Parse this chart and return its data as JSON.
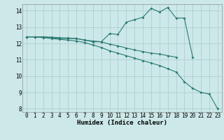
{
  "xlabel": "Humidex (Indice chaleur)",
  "xlim": [
    -0.5,
    23.5
  ],
  "ylim": [
    7.8,
    14.4
  ],
  "xticks": [
    0,
    1,
    2,
    3,
    4,
    5,
    6,
    7,
    8,
    9,
    10,
    11,
    12,
    13,
    14,
    15,
    16,
    17,
    18,
    19,
    20,
    21,
    22,
    23
  ],
  "yticks": [
    8,
    9,
    10,
    11,
    12,
    13,
    14
  ],
  "bg_color": "#cce8e8",
  "grid_color": "#b0d0d0",
  "line_color": "#2a7a72",
  "line1_x": [
    0,
    1,
    2,
    3,
    4,
    5,
    6,
    7,
    8,
    9,
    10,
    11,
    12,
    13,
    14,
    15,
    16,
    17,
    18,
    19,
    20
  ],
  "line1_y": [
    12.4,
    12.4,
    12.4,
    12.35,
    12.3,
    12.3,
    12.3,
    12.2,
    12.1,
    12.1,
    12.6,
    12.55,
    13.3,
    13.45,
    13.6,
    14.15,
    13.92,
    14.2,
    13.55,
    13.55,
    11.15
  ],
  "line2_x": [
    0,
    1,
    2,
    3,
    4,
    5,
    6,
    7,
    8,
    9,
    10,
    11,
    12,
    13,
    14,
    15,
    16,
    17,
    18,
    19,
    20,
    21,
    22,
    23
  ],
  "line2_y": [
    12.4,
    12.4,
    12.35,
    12.3,
    12.25,
    12.2,
    12.15,
    12.05,
    11.9,
    11.75,
    11.55,
    11.4,
    11.25,
    11.1,
    10.95,
    10.8,
    10.65,
    10.45,
    10.25,
    9.65,
    9.25,
    9.0,
    8.9,
    8.0
  ],
  "line3_x": [
    0,
    1,
    2,
    3,
    4,
    5,
    6,
    7,
    8,
    9,
    10,
    11,
    12,
    13,
    14,
    15,
    16,
    17,
    18
  ],
  "line3_y": [
    12.4,
    12.4,
    12.4,
    12.38,
    12.35,
    12.33,
    12.3,
    12.2,
    12.15,
    12.1,
    11.95,
    11.85,
    11.72,
    11.6,
    11.5,
    11.4,
    11.35,
    11.25,
    11.15
  ]
}
